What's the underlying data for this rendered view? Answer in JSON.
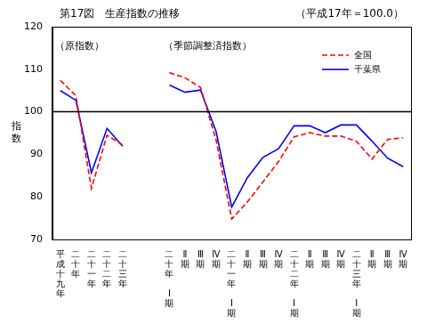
{
  "chart_data": {
    "type": "line",
    "title": "第17図　生産指数の推移",
    "subtitle": "（平成17年＝100.0）",
    "y_label": "指数",
    "annotations": [
      "（原指数）",
      "（季節調整済指数）"
    ],
    "categories": [
      "平成十九年",
      "二十年",
      "二十一年",
      "二十二年",
      "二十三年",
      null,
      null,
      "二十年 Ⅰ期",
      "Ⅱ期",
      "Ⅲ期",
      "Ⅳ期",
      "二十一年 Ⅰ期",
      "Ⅱ期",
      "Ⅲ期",
      "Ⅳ期",
      "二十二年 Ⅰ期",
      "Ⅱ期",
      "Ⅲ期",
      "Ⅳ期",
      "二十三年 Ⅰ期",
      "Ⅱ期",
      "Ⅲ期",
      "Ⅳ期"
    ],
    "series": [
      {
        "name": "全国",
        "color": "#ff0000",
        "line_style": "dashed",
        "values": [
          107.4,
          103.8,
          82.0,
          94.5,
          92.2,
          null,
          null,
          109.2,
          108.0,
          105.7,
          93.3,
          74.8,
          78.8,
          83.5,
          88.3,
          94.1,
          95.1,
          94.3,
          94.3,
          93.1,
          88.9,
          93.5,
          93.9
        ]
      },
      {
        "name": "千葉県",
        "color": "#0000ff",
        "line_style": "solid",
        "values": [
          105.0,
          102.7,
          85.7,
          96.1,
          91.9,
          null,
          null,
          106.3,
          104.6,
          105.1,
          95.3,
          77.6,
          84.5,
          89.3,
          91.3,
          96.7,
          96.7,
          95.1,
          96.9,
          96.9,
          93.1,
          89.1,
          87.1
        ]
      }
    ],
    "ylim": [
      70,
      120
    ],
    "yticks": [
      70,
      80,
      90,
      100,
      110,
      120
    ],
    "reference_line": 100,
    "grid": false,
    "legend": "upper right"
  }
}
